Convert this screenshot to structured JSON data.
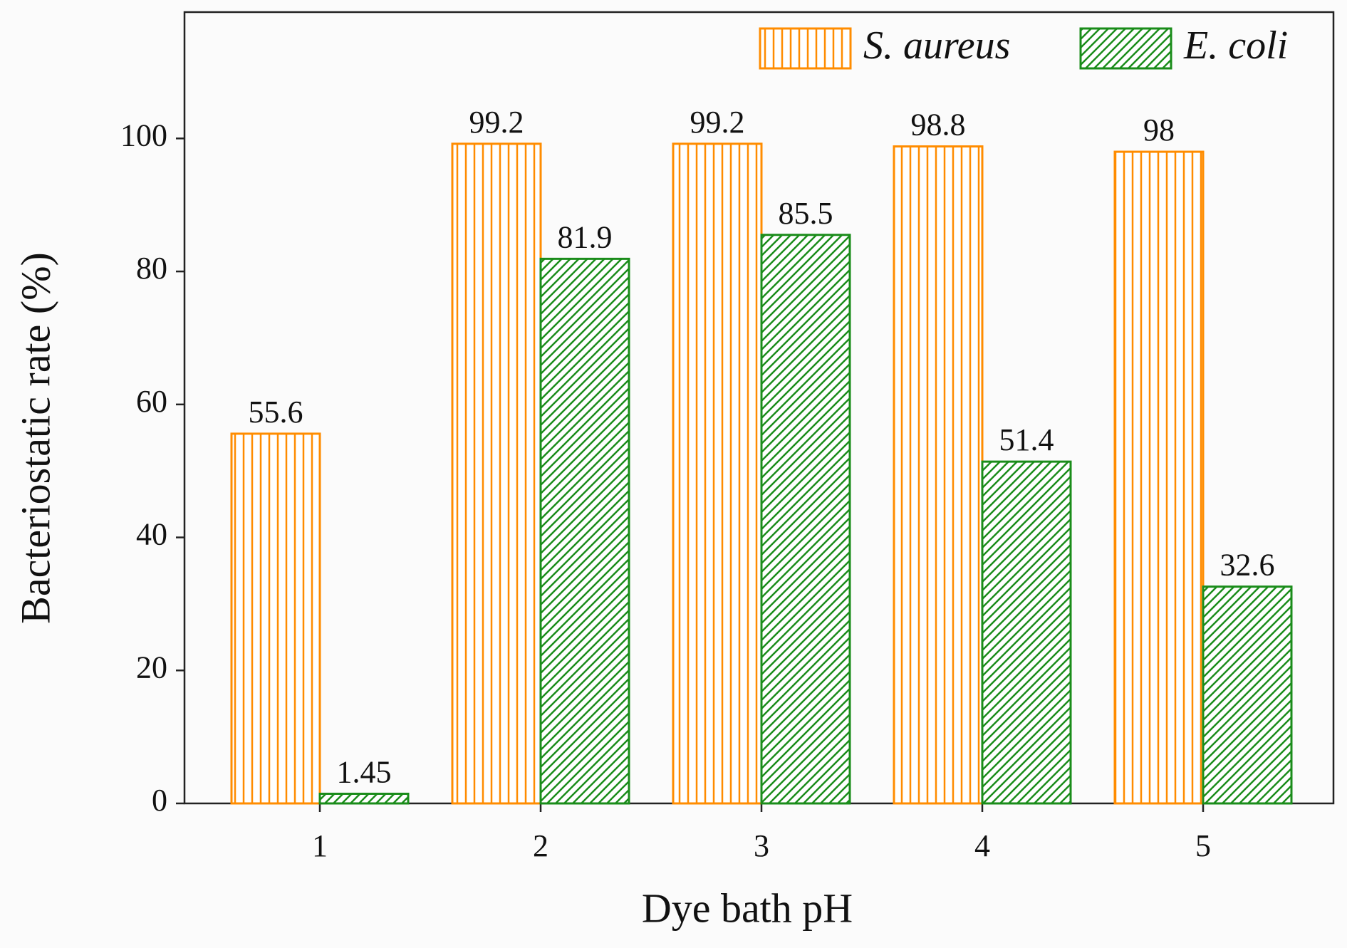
{
  "chart_data": {
    "type": "bar",
    "x_label": "Dye bath pH",
    "y_label": "Bacteriostatic rate (%)",
    "categories": [
      "1",
      "2",
      "3",
      "4",
      "5"
    ],
    "series": [
      {
        "name": "S. aureus",
        "color": "#ff8c00",
        "hatch": "vertical",
        "values": [
          55.6,
          99.2,
          99.2,
          98.8,
          98
        ]
      },
      {
        "name": "E. coli",
        "color": "#1a8c1a",
        "hatch": "diagonal",
        "values": [
          1.45,
          81.9,
          85.5,
          51.4,
          32.6
        ]
      }
    ],
    "ylim": [
      0,
      119
    ],
    "yticks": [
      0,
      20,
      40,
      60,
      80,
      100
    ],
    "legend": "upper right",
    "grid": false
  }
}
